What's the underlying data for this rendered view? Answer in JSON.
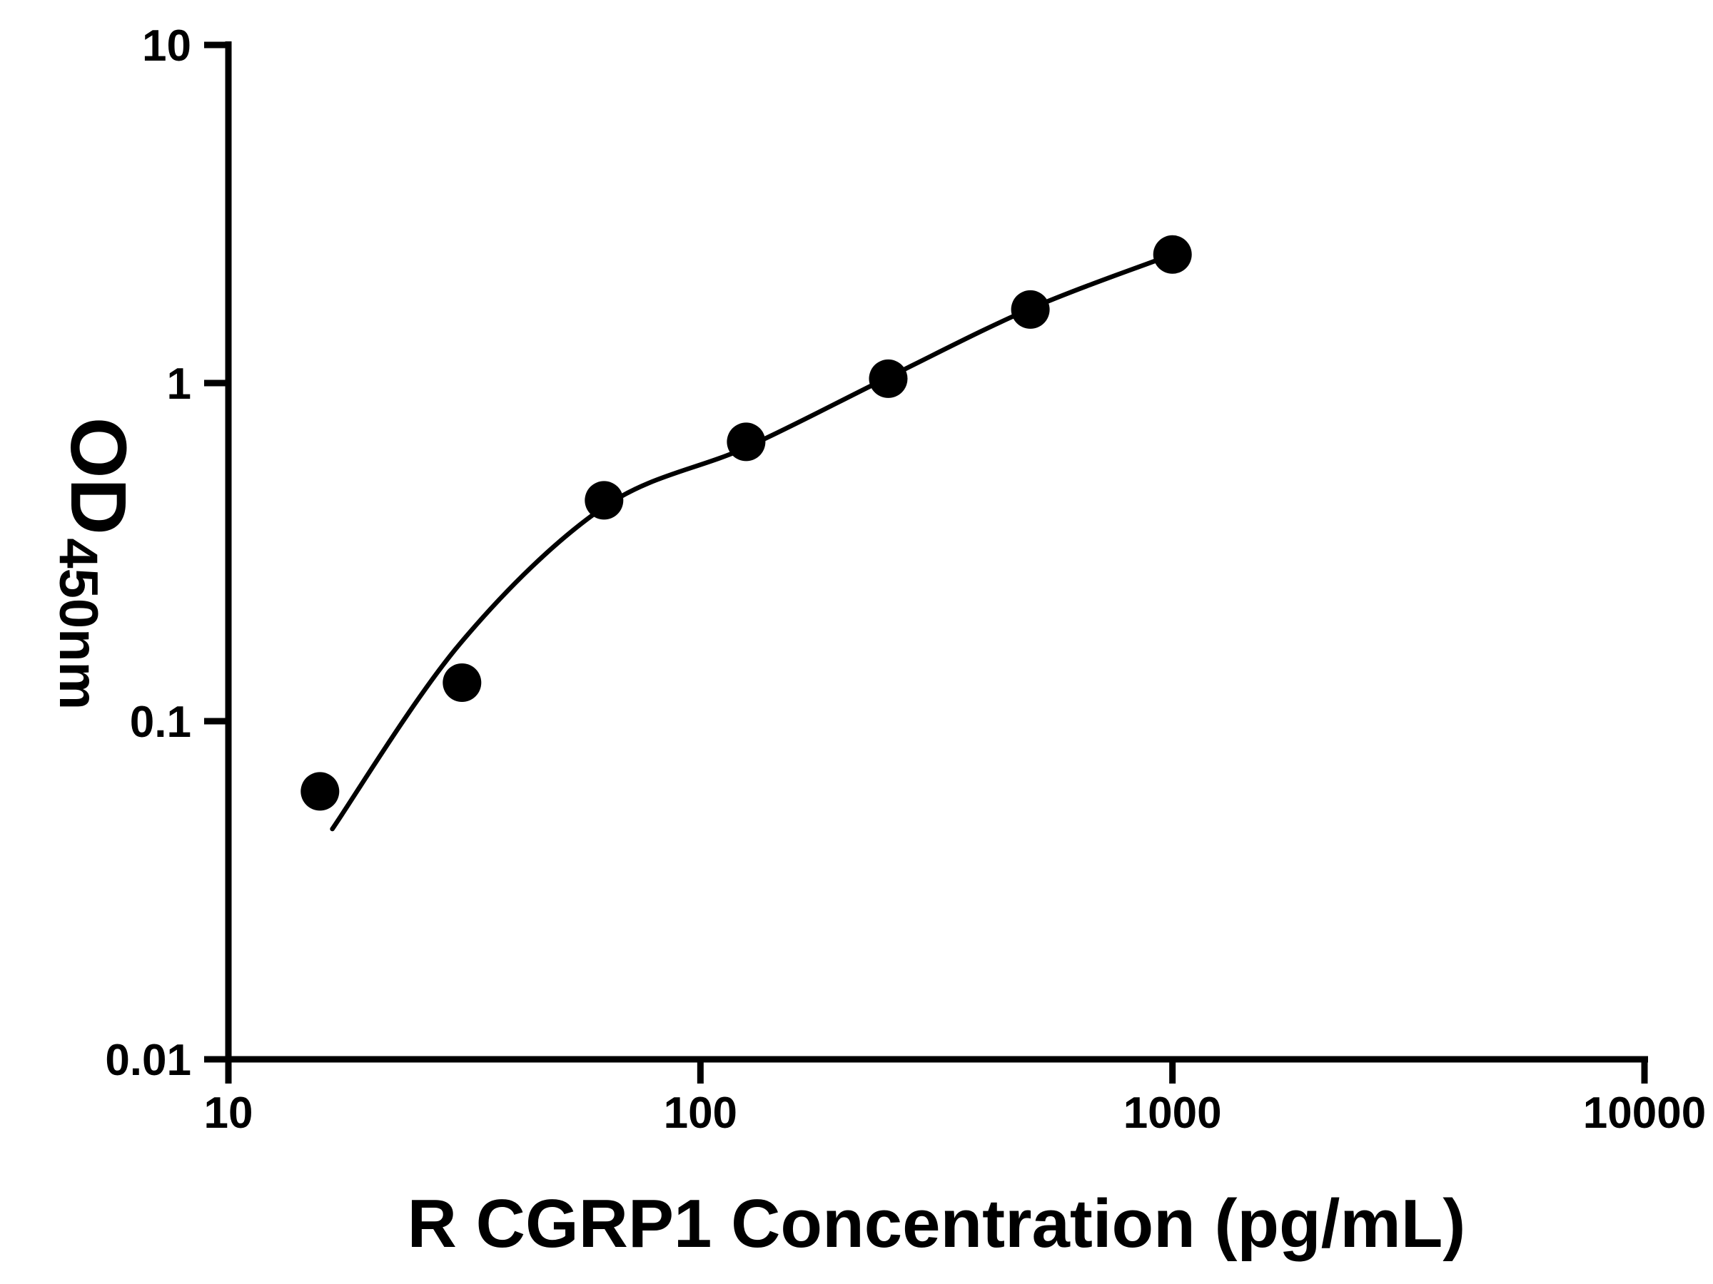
{
  "figure": {
    "background_color": "#ffffff"
  },
  "chart_data": {
    "type": "scatter",
    "title": "",
    "xlabel": "R CGRP1 Concentration (pg/mL)",
    "ylabel": "OD450nm",
    "ylabel_main": "OD",
    "ylabel_sub": "450nm",
    "x_scale": "log10",
    "y_scale": "log10",
    "xlim": [
      10,
      10000
    ],
    "ylim": [
      0.01,
      10
    ],
    "x_ticks": [
      10,
      100,
      1000,
      10000
    ],
    "x_tick_labels": [
      "10",
      "100",
      "1000",
      "10000"
    ],
    "y_ticks": [
      10,
      1,
      0.1,
      0.01
    ],
    "y_tick_labels": [
      "10",
      "1",
      "0.1",
      "0.01"
    ],
    "grid": false,
    "legend": false,
    "colors": {
      "axis": "#000000",
      "points": "#000000",
      "curve": "#000000",
      "background": "#ffffff"
    },
    "series": [
      {
        "name": "standard-points",
        "type": "scatter",
        "marker": "filled-circle",
        "x": [
          15.63,
          31.25,
          62.5,
          125,
          250,
          500,
          1000
        ],
        "y": [
          0.062,
          0.13,
          0.45,
          0.67,
          1.03,
          1.65,
          2.4
        ]
      },
      {
        "name": "fit-curve",
        "type": "line",
        "x": [
          16.6,
          31,
          62.5,
          125,
          250,
          500,
          1000
        ],
        "y": [
          0.048,
          0.17,
          0.43,
          0.645,
          1.04,
          1.66,
          2.4
        ]
      }
    ]
  }
}
